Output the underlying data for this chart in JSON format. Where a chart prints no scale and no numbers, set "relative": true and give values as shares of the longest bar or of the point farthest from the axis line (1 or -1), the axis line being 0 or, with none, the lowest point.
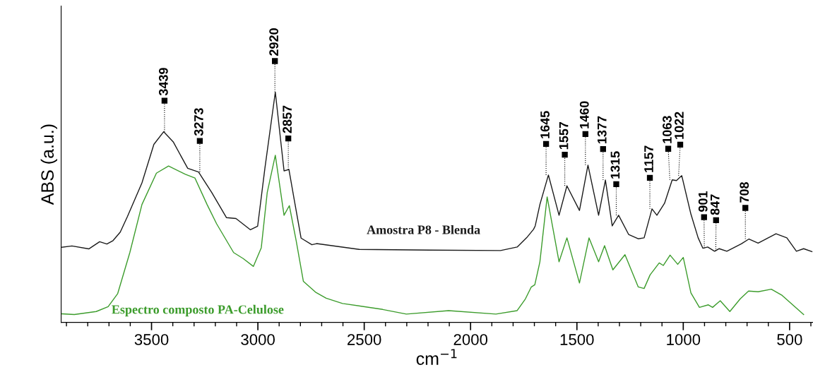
{
  "chart_data": {
    "type": "line",
    "relative": true,
    "xlabel": "cm$^{−1}$",
    "ylabel": "ABS (a.u.)",
    "xlim": [
      3925,
      390
    ],
    "xticks": [
      {
        "value": 3900,
        "label": null
      },
      {
        "value": 3800,
        "label": null
      },
      {
        "value": 3700,
        "label": null
      },
      {
        "value": 3600,
        "label": null
      },
      3500,
      {
        "value": 3400,
        "label": null
      },
      {
        "value": 3300,
        "label": null
      },
      {
        "value": 3200,
        "label": null
      },
      {
        "value": 3100,
        "label": null
      },
      3000,
      {
        "value": 2900,
        "label": null
      },
      {
        "value": 2800,
        "label": null
      },
      {
        "value": 2700,
        "label": null
      },
      {
        "value": 2600,
        "label": null
      },
      2500,
      {
        "value": 2400,
        "label": null
      },
      {
        "value": 2300,
        "label": null
      },
      {
        "value": 2200,
        "label": null
      },
      {
        "value": 2100,
        "label": null
      },
      2000,
      {
        "value": 1900,
        "label": null
      },
      {
        "value": 1800,
        "label": null
      },
      {
        "value": 1700,
        "label": null
      },
      {
        "value": 1600,
        "label": null
      },
      1500,
      {
        "value": 1400,
        "label": null
      },
      {
        "value": 1300,
        "label": null
      },
      {
        "value": 1200,
        "label": null
      },
      {
        "value": 1100,
        "label": null
      },
      1000,
      {
        "value": 900,
        "label": null
      },
      {
        "value": 800,
        "label": null
      },
      {
        "value": 700,
        "label": null
      },
      {
        "value": 600,
        "label": null
      },
      500,
      {
        "value": 400,
        "label": null
      }
    ],
    "grid": false,
    "legend": false,
    "marker": "none",
    "line_style": "solid",
    "series": [
      {
        "name": "Amostra P8 - Blenda",
        "color": "#1a1a1a",
        "x": [
          3921,
          3874,
          3795,
          3744,
          3710,
          3681,
          3647,
          3613,
          3545,
          3489,
          3443,
          3398,
          3330,
          3279,
          3217,
          3148,
          3103,
          3035,
          3001,
          2967,
          2918,
          2877,
          2854,
          2831,
          2797,
          2746,
          2724,
          2524,
          2191,
          1859,
          1781,
          1736,
          1704,
          1696,
          1674,
          1634,
          1584,
          1547,
          1488,
          1448,
          1398,
          1366,
          1334,
          1304,
          1257,
          1212,
          1184,
          1147,
          1124,
          1088,
          1052,
          1032,
          1007,
          964,
          930,
          908,
          885,
          853,
          831,
          795,
          727,
          691,
          648,
          564,
          513,
          468,
          434,
          395
        ],
        "values": [
          0.326,
          0.332,
          0.319,
          0.35,
          0.34,
          0.355,
          0.392,
          0.46,
          0.606,
          0.773,
          0.828,
          0.784,
          0.669,
          0.653,
          0.564,
          0.455,
          0.451,
          0.402,
          0.418,
          0.669,
          1.0,
          0.658,
          0.664,
          0.543,
          0.366,
          0.337,
          0.342,
          0.317,
          0.314,
          0.312,
          0.327,
          0.368,
          0.404,
          0.419,
          0.512,
          0.64,
          0.465,
          0.593,
          0.486,
          0.683,
          0.465,
          0.618,
          0.419,
          0.465,
          0.382,
          0.363,
          0.367,
          0.493,
          0.465,
          0.517,
          0.619,
          0.616,
          0.637,
          0.47,
          0.367,
          0.322,
          0.327,
          0.309,
          0.32,
          0.309,
          0.341,
          0.362,
          0.344,
          0.385,
          0.367,
          0.309,
          0.32,
          0.307
        ]
      },
      {
        "name": "Espectro composto PA-Celulose",
        "color": "#3c9c2c",
        "x": [
          3921,
          3863,
          3760,
          3704,
          3659,
          3602,
          3545,
          3477,
          3420,
          3341,
          3296,
          3239,
          3194,
          3114,
          3069,
          3021,
          2984,
          2956,
          2918,
          2877,
          2852,
          2820,
          2786,
          2729,
          2679,
          2602,
          2413,
          2302,
          2103,
          1881,
          1781,
          1742,
          1715,
          1698,
          1674,
          1640,
          1584,
          1547,
          1488,
          1443,
          1398,
          1370,
          1331,
          1274,
          1212,
          1184,
          1156,
          1113,
          1094,
          1062,
          1026,
          1000,
          964,
          924,
          882,
          862,
          826,
          781,
          732,
          693,
          648,
          586,
          535,
          434
        ],
        "values": [
          0.037,
          0.034,
          0.047,
          0.068,
          0.125,
          0.303,
          0.512,
          0.648,
          0.679,
          0.643,
          0.627,
          0.512,
          0.428,
          0.303,
          0.277,
          0.243,
          0.324,
          0.564,
          0.726,
          0.465,
          0.507,
          0.355,
          0.178,
          0.131,
          0.105,
          0.082,
          0.056,
          0.036,
          0.051,
          0.036,
          0.051,
          0.102,
          0.153,
          0.163,
          0.263,
          0.545,
          0.263,
          0.367,
          0.171,
          0.367,
          0.263,
          0.333,
          0.228,
          0.294,
          0.154,
          0.147,
          0.206,
          0.258,
          0.247,
          0.292,
          0.252,
          0.282,
          0.128,
          0.065,
          0.076,
          0.065,
          0.094,
          0.047,
          0.102,
          0.136,
          0.133,
          0.144,
          0.117,
          0.034
        ]
      }
    ],
    "annotations": [
      {
        "text": "3439",
        "x": 3439,
        "y": 0.828
      },
      {
        "text": "3273",
        "x": 3273,
        "y": 0.653
      },
      {
        "text": "2920",
        "x": 2920,
        "y": 1.0
      },
      {
        "text": "2857",
        "x": 2857,
        "y": 0.664
      },
      {
        "text": "1645",
        "x": 1645,
        "y": 0.64
      },
      {
        "text": "1557",
        "x": 1557,
        "y": 0.593
      },
      {
        "text": "1460",
        "x": 1460,
        "y": 0.683
      },
      {
        "text": "1377",
        "x": 1377,
        "y": 0.618
      },
      {
        "text": "1315",
        "x": 1315,
        "y": 0.465
      },
      {
        "text": "1157",
        "x": 1157,
        "y": 0.493
      },
      {
        "text": "1063",
        "x": 1063,
        "y": 0.619
      },
      {
        "text": "1022",
        "x": 1022,
        "y": 0.637
      },
      {
        "text": "901",
        "x": 901,
        "y": 0.322
      },
      {
        "text": "847",
        "x": 847,
        "y": 0.309
      },
      {
        "text": "708",
        "x": 708,
        "y": 0.362
      }
    ]
  }
}
